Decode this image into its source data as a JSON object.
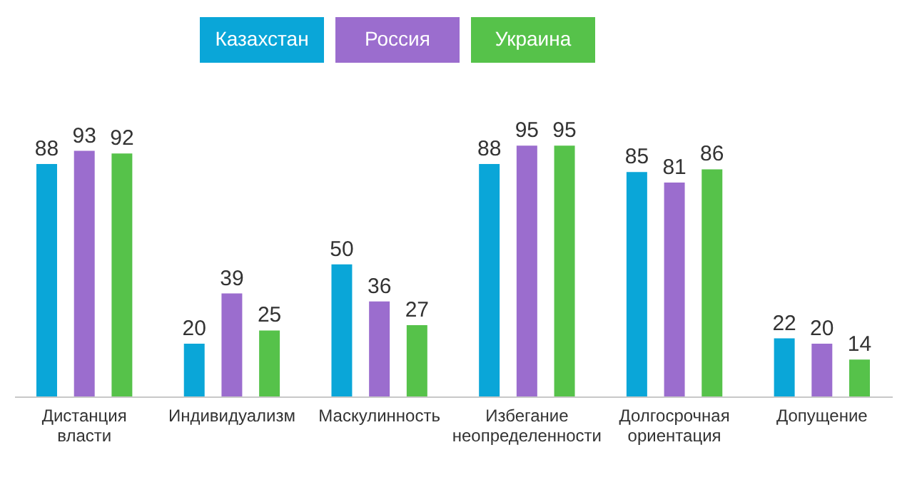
{
  "chart_data": {
    "type": "bar",
    "categories": [
      "Дистанция власти",
      "Индивидуализм",
      "Маскулинность",
      "Избегание неопределенности",
      "Долгосрочная ориентация",
      "Допущение"
    ],
    "series": [
      {
        "name": "Казахстан",
        "color": "#0aa6d8",
        "values": [
          88,
          20,
          50,
          88,
          85,
          22
        ]
      },
      {
        "name": "Россия",
        "color": "#9b6dce",
        "values": [
          93,
          39,
          36,
          95,
          81,
          20
        ]
      },
      {
        "name": "Украина",
        "color": "#56c24a",
        "values": [
          92,
          25,
          27,
          95,
          86,
          14
        ]
      }
    ],
    "data_labels": true,
    "legend": "top",
    "grid": false
  }
}
